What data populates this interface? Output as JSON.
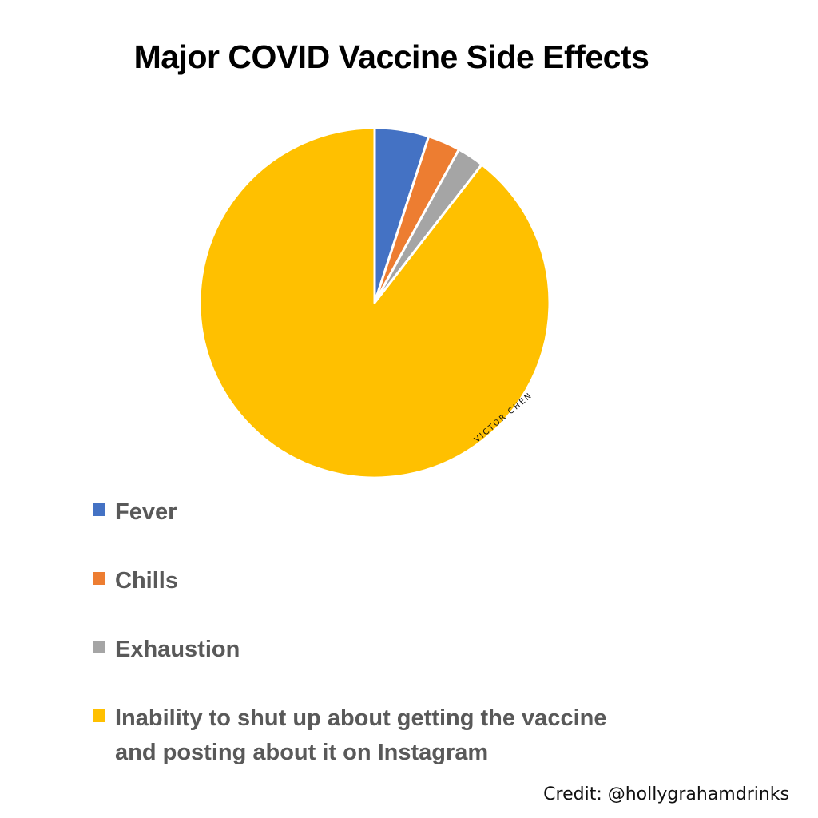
{
  "title": "Major COVID Vaccine Side Effects",
  "watermark": "VICTOR CHEN",
  "credit": "Credit: @hollygrahamdrinks",
  "legend": [
    {
      "label": "Fever",
      "color": "#4472C4"
    },
    {
      "label": "Chills",
      "color": "#ED7D31"
    },
    {
      "label": "Exhaustion",
      "color": "#A5A5A5"
    },
    {
      "label_line1": "Inability to shut up about getting the vaccine",
      "label_line2": "and posting about it on Instagram",
      "color": "#FFC000"
    }
  ],
  "chart_data": {
    "type": "pie",
    "title": "Major COVID Vaccine Side Effects",
    "categories": [
      "Fever",
      "Chills",
      "Exhaustion",
      "Inability to shut up about getting the vaccine and posting about it on Instagram"
    ],
    "values": [
      5,
      3,
      2.5,
      89.5
    ],
    "colors": [
      "#4472C4",
      "#ED7D31",
      "#A5A5A5",
      "#FFC000"
    ],
    "start_angle": "12 o'clock, clockwise",
    "legend_position": "bottom",
    "data_labels": false
  }
}
